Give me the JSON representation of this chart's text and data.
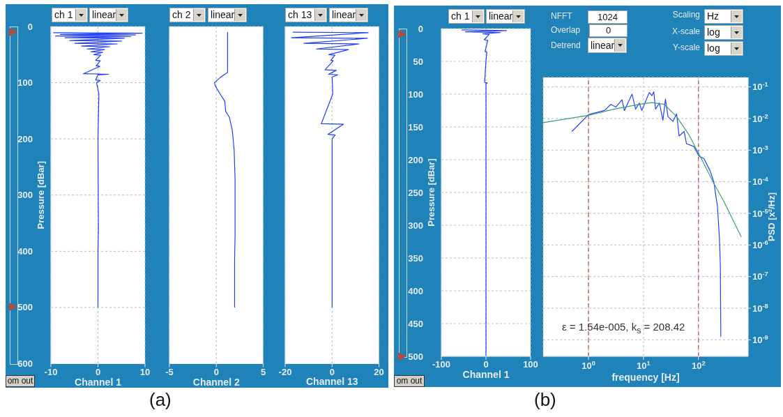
{
  "chart_data": [
    {
      "type": "line",
      "xlabel": "Channel 1",
      "ylabel": "Pressure [dBar]",
      "color": "#1f3cff",
      "grid": true,
      "xlim": [
        -10,
        10
      ],
      "xticks": [
        -10,
        0,
        10
      ],
      "ylim": [
        600,
        0
      ],
      "yticks": [
        0,
        100,
        200,
        300,
        400,
        500,
        600
      ],
      "x": [
        -9.5,
        9.4,
        -8,
        8,
        -9,
        7,
        -7,
        5.6,
        -6,
        5,
        -4.9,
        4.1,
        -3.5,
        2.5,
        -2.3,
        1.4,
        -1.5,
        1,
        -0.9,
        0.6,
        -0.5,
        0.5,
        -0.4,
        0.4,
        -3.1,
        2.3,
        0,
        -0.5,
        0.5,
        -0.3,
        0.2,
        0,
        0.1,
        0,
        0
      ],
      "values": [
        11,
        12,
        14,
        15,
        17,
        18,
        20,
        21,
        25,
        26,
        30,
        31,
        35,
        36,
        40,
        41,
        45,
        46,
        50,
        51,
        60,
        61,
        70,
        71,
        84,
        85,
        86,
        95,
        96,
        100,
        120,
        200,
        360,
        400,
        500
      ],
      "annotations": [
        "ch 1",
        "linear",
        "om out",
        "(a)"
      ]
    },
    {
      "type": "line",
      "xlabel": "Channel 2",
      "color": "#1f3cff",
      "grid": true,
      "tick_labels": "x",
      "xlim": [
        -5,
        5
      ],
      "xticks": [
        -5,
        0,
        5
      ],
      "ylim": [
        600,
        0
      ],
      "yticks": [
        0,
        100,
        200,
        300,
        400,
        500,
        600
      ],
      "x": [
        1.2,
        1.2,
        0.9,
        0.4,
        -0.2,
        -0.1,
        0.4,
        0.9,
        1,
        1.4,
        1.7,
        1.9,
        2,
        2,
        2,
        1.95,
        1.95
      ],
      "values": [
        10,
        82,
        85,
        91,
        100,
        106,
        120,
        133,
        151,
        162,
        184,
        219,
        272,
        308,
        371,
        415,
        500
      ],
      "annotations": [
        "ch 2",
        "linear"
      ]
    },
    {
      "type": "line",
      "xlabel": "Channel 13",
      "color": "#1f3cff",
      "grid": true,
      "tick_labels": "x",
      "xlim": [
        -20,
        20
      ],
      "xticks": [
        -20,
        0,
        20
      ],
      "ylim": [
        600,
        0
      ],
      "yticks": [
        0,
        100,
        200,
        300,
        400,
        500,
        600
      ],
      "x": [
        -16.8,
        15.4,
        -17.3,
        15,
        -12,
        11.5,
        -6.7,
        7,
        -1.4,
        1.2,
        -0.5,
        0.5,
        -3,
        1.8,
        -1.5,
        2.5,
        0,
        0.3,
        -4.6,
        4.8,
        -1.8,
        1.3,
        0,
        0,
        0,
        0
      ],
      "values": [
        10,
        11,
        20,
        21,
        30,
        31,
        40,
        41,
        50,
        51,
        60,
        61,
        77,
        78,
        85,
        86,
        90,
        120,
        173,
        174,
        192,
        193,
        200,
        300,
        400,
        500
      ],
      "annotations": [
        "ch 13",
        "linear"
      ]
    },
    {
      "type": "line",
      "xlabel": "Channel 1",
      "ylabel": "Pressure [dBar]",
      "color": "#1f3cff",
      "grid": true,
      "xlim": [
        -100,
        100
      ],
      "xticks": [
        -100,
        0,
        100
      ],
      "ylim": [
        500,
        0
      ],
      "yticks": [
        0,
        50,
        100,
        150,
        200,
        250,
        300,
        350,
        400,
        450,
        500
      ],
      "x": [
        -55,
        46,
        -46,
        32,
        -7,
        7,
        -4,
        4,
        -2,
        2,
        0,
        -3,
        3,
        0,
        0
      ],
      "values": [
        2,
        3,
        5,
        6,
        8,
        9,
        17,
        18,
        35,
        36,
        49,
        82,
        83,
        84,
        500
      ],
      "annotations": [
        "ch 1",
        "linear",
        "om out",
        "(b)"
      ]
    },
    {
      "type": "line",
      "xlabel": "frequency [Hz]",
      "ylabel": "PSD [x²/Hz]",
      "log": "xy",
      "grid": true,
      "xlim": [
        0.15,
        800
      ],
      "xticks": [
        {
          "value": 1,
          "label": "10$^{0}$"
        },
        {
          "value": 10,
          "label": "10$^{1}$"
        },
        {
          "value": 100,
          "label": "10$^{2}$"
        }
      ],
      "ylim": [
        3e-10,
        0.2
      ],
      "yticks": [
        {
          "value": 1e-09,
          "label": "10$^{-9}$"
        },
        {
          "value": 1e-08,
          "label": "10$^{-8}$"
        },
        {
          "value": 1e-07,
          "label": "10$^{-7}$"
        },
        {
          "value": 1e-06,
          "label": "10$^{-6}$"
        },
        {
          "value": 1e-05,
          "label": "10$^{-5}$"
        },
        {
          "value": 0.0001,
          "label": "10$^{-4}$"
        },
        {
          "value": 0.001,
          "label": "10$^{-3}$"
        },
        {
          "value": 0.01,
          "label": "10$^{-2}$"
        },
        {
          "value": 0.1,
          "label": "10$^{-1}$"
        }
      ],
      "ref_lines": [
        {
          "axis": "x",
          "value": 1,
          "color": "#b03020",
          "line_style": "dashed"
        },
        {
          "axis": "x",
          "value": 100,
          "color": "#d03030",
          "line_style": "dashed"
        }
      ],
      "series": [
        {
          "color": "#2040ff",
          "x": [
            0.5,
            1,
            1.96,
            2.55,
            3.14,
            4.07,
            4.5,
            6.2,
            7.2,
            8.4,
            9.3,
            12.8,
            14.2,
            15.4,
            16.6,
            19.5,
            22.6,
            25.1,
            27.9,
            34.3,
            40,
            44.5,
            54.9,
            60.5,
            82.6,
            102,
            126,
            163,
            190,
            222,
            240,
            250,
            255
          ],
          "values": [
            0.0039,
            0.0133,
            0.018,
            0.028,
            0.023,
            0.039,
            0.018,
            0.059,
            0.02,
            0.031,
            0.018,
            0.067,
            0.053,
            0.07,
            0.02,
            0.031,
            0.0089,
            0.041,
            0.0116,
            0.0081,
            0.0139,
            0.0028,
            0.0039,
            0.0016,
            0.0013,
            0.00065,
            0.00054,
            0.00022,
            0.0001,
            1.6e-05,
            1.7e-06,
            2.3e-07,
            1.25e-09
          ]
        },
        {
          "color": "#3c9c78",
          "x": [
            0.15,
            1,
            2.98,
            8.4,
            14.2,
            23.8,
            40,
            67.5,
            113,
            190,
            289,
            600
          ],
          "values": [
            0.0074,
            0.0126,
            0.02,
            0.028,
            0.032,
            0.028,
            0.0116,
            0.003,
            0.00054,
            8.9e-05,
            2.4e-05,
            1.8e-06
          ]
        }
      ],
      "annotations": [
        "NFFT",
        "1024",
        "Overlap",
        "0",
        "Detrend",
        "linear",
        "Scaling",
        "Hz",
        "X-scale",
        "log",
        "Y-scale",
        "log",
        "ε = 1.54e-005, k$_{s}$ = 208.42"
      ]
    }
  ]
}
